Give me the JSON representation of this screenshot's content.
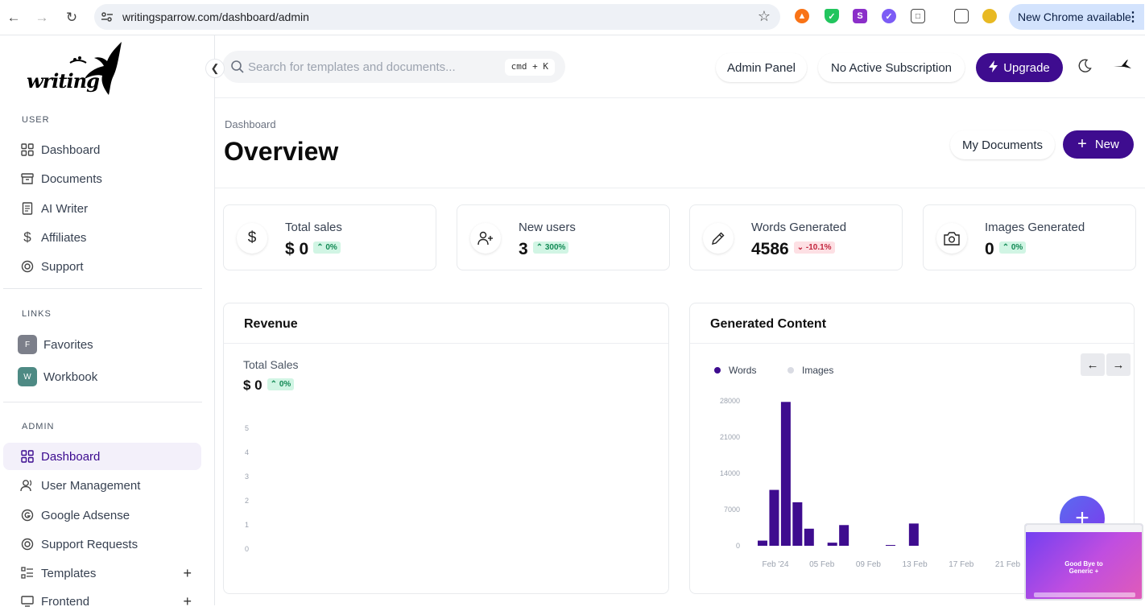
{
  "browser": {
    "url": "writingsparrow.com/dashboard/admin",
    "update_pill": "New Chrome available"
  },
  "sidebar": {
    "logo_text": "writing",
    "user_section": "USER",
    "user_items": [
      {
        "label": "Dashboard",
        "icon": "grid-icon"
      },
      {
        "label": "Documents",
        "icon": "archive-icon"
      },
      {
        "label": "AI Writer",
        "icon": "document-icon"
      },
      {
        "label": "Affiliates",
        "icon": "dollar-icon"
      },
      {
        "label": "Support",
        "icon": "lifebuoy-icon"
      }
    ],
    "links_section": "LINKS",
    "links": [
      {
        "letter": "F",
        "label": "Favorites",
        "color": "#7c7f8a"
      },
      {
        "letter": "W",
        "label": "Workbook",
        "color": "#4e8a84"
      }
    ],
    "admin_section": "ADMIN",
    "admin_items": [
      {
        "label": "Dashboard",
        "icon": "grid-icon"
      },
      {
        "label": "User Management",
        "icon": "users-icon"
      },
      {
        "label": "Google Adsense",
        "icon": "google-icon"
      },
      {
        "label": "Support Requests",
        "icon": "lifebuoy-icon"
      },
      {
        "label": "Templates",
        "icon": "list-icon"
      },
      {
        "label": "Frontend",
        "icon": "monitor-icon"
      }
    ]
  },
  "header": {
    "search_placeholder": "Search for templates and documents...",
    "shortcut": "cmd + K",
    "admin_panel": "Admin Panel",
    "subscription": "No Active Subscription",
    "upgrade": "Upgrade"
  },
  "page": {
    "breadcrumb": "Dashboard",
    "title": "Overview",
    "my_documents": "My Documents",
    "new_label": "New"
  },
  "stats": [
    {
      "label": "Total sales",
      "value": "$ 0",
      "change": "0%",
      "trend": "up",
      "icon": "dollar-icon"
    },
    {
      "label": "New users",
      "value": "3",
      "change": "300%",
      "trend": "up",
      "icon": "user-plus-icon"
    },
    {
      "label": "Words Generated",
      "value": "4586",
      "change": "-10.1%",
      "trend": "down",
      "icon": "pencil-icon"
    },
    {
      "label": "Images Generated",
      "value": "0",
      "change": "0%",
      "trend": "up",
      "icon": "camera-icon"
    }
  ],
  "revenue": {
    "title": "Revenue",
    "subtitle": "Total Sales",
    "value": "$ 0",
    "change": "0%"
  },
  "generated": {
    "title": "Generated Content"
  },
  "colors": {
    "accent": "#3e0c8f",
    "bar": "#3e0c8f",
    "up": "#138a55",
    "down": "#c2253d"
  },
  "chart_data": [
    {
      "type": "line",
      "title": "Revenue",
      "ylim": [
        0,
        5
      ],
      "yticks": [
        "5",
        "4",
        "3",
        "2",
        "1",
        "0"
      ],
      "series": []
    },
    {
      "type": "bar",
      "title": "Generated Content",
      "legend": [
        "Words",
        "Images"
      ],
      "legend_colors": [
        "#3e0c8f",
        "#d9dbe3"
      ],
      "ylim": [
        0,
        28000
      ],
      "yticks": [
        "28000",
        "21000",
        "14000",
        "7000",
        "0"
      ],
      "xticks": [
        "Feb '24",
        "05 Feb",
        "09 Feb",
        "13 Feb",
        "17 Feb",
        "21 Feb"
      ],
      "series": [
        {
          "name": "Words",
          "values": [
            1000,
            10800,
            27800,
            8400,
            3300,
            0,
            600,
            4000,
            0,
            0,
            0,
            100,
            0,
            4300,
            0,
            0,
            0,
            0,
            0,
            0,
            0
          ]
        }
      ]
    }
  ]
}
